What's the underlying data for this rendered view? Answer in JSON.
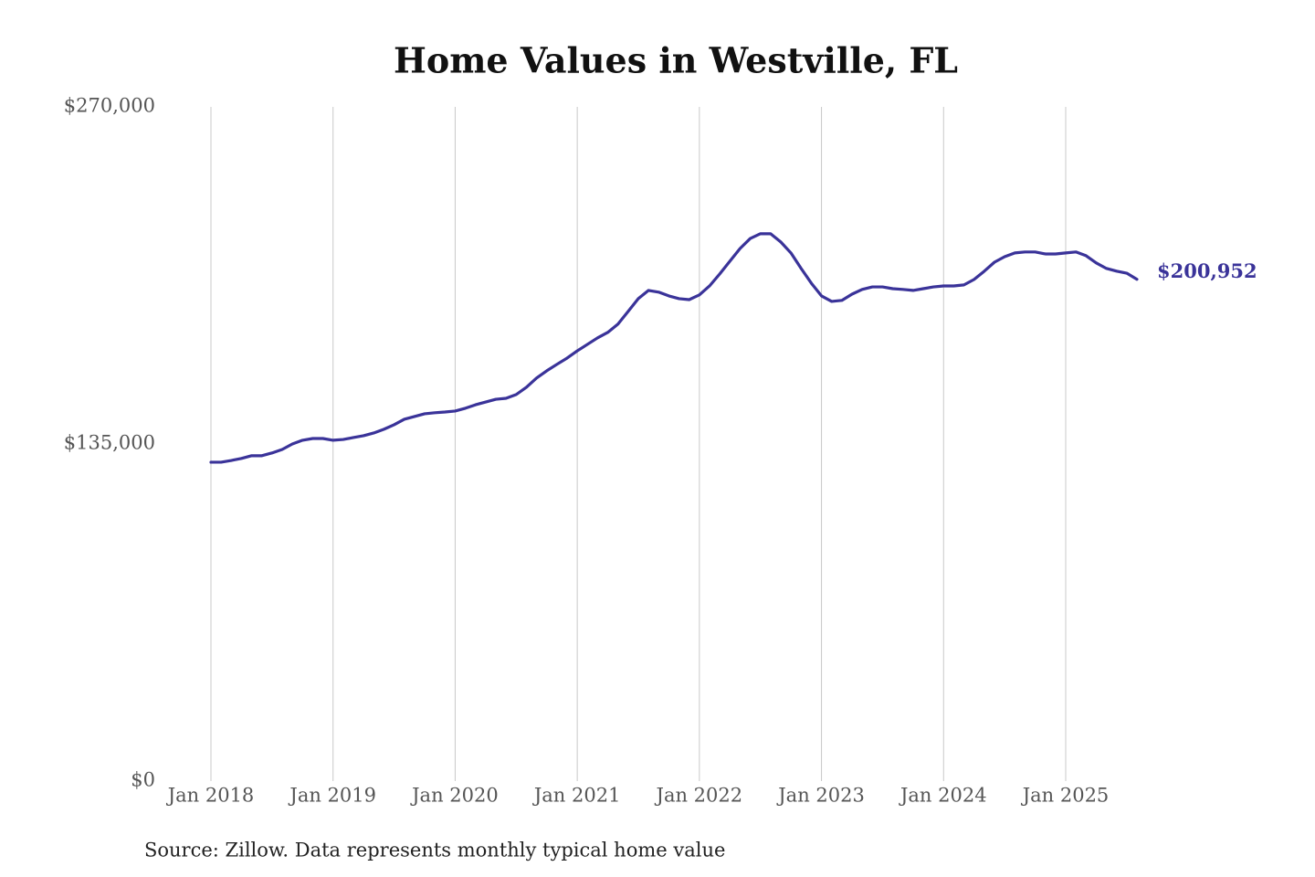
{
  "chart_data": {
    "type": "line",
    "title": "Home Values in Westville, FL",
    "note": "Source: Zillow. Data represents monthly typical home value",
    "x": [
      "2018-01",
      "2018-02",
      "2018-03",
      "2018-04",
      "2018-05",
      "2018-06",
      "2018-07",
      "2018-08",
      "2018-09",
      "2018-10",
      "2018-11",
      "2018-12",
      "2019-01",
      "2019-02",
      "2019-03",
      "2019-04",
      "2019-05",
      "2019-06",
      "2019-07",
      "2019-08",
      "2019-09",
      "2019-10",
      "2019-11",
      "2019-12",
      "2020-01",
      "2020-02",
      "2020-03",
      "2020-04",
      "2020-05",
      "2020-06",
      "2020-07",
      "2020-08",
      "2020-09",
      "2020-10",
      "2020-11",
      "2020-12",
      "2021-01",
      "2021-02",
      "2021-03",
      "2021-04",
      "2021-05",
      "2021-06",
      "2021-07",
      "2021-08",
      "2021-09",
      "2021-10",
      "2021-11",
      "2021-12",
      "2022-01",
      "2022-02",
      "2022-03",
      "2022-04",
      "2022-05",
      "2022-06",
      "2022-07",
      "2022-08",
      "2022-09",
      "2022-10",
      "2022-11",
      "2022-12",
      "2023-01",
      "2023-02",
      "2023-03",
      "2023-04",
      "2023-05",
      "2023-06",
      "2023-07",
      "2023-08",
      "2023-09",
      "2023-10",
      "2023-11",
      "2023-12",
      "2024-01",
      "2024-02",
      "2024-03",
      "2024-04",
      "2024-05",
      "2024-06",
      "2024-07",
      "2024-08",
      "2024-09",
      "2024-10",
      "2024-11",
      "2024-12",
      "2025-01",
      "2025-02",
      "2025-03",
      "2025-04",
      "2025-05",
      "2025-06",
      "2025-07",
      "2025-08"
    ],
    "series": [
      {
        "name": "Home value",
        "color": "#3a3399",
        "values": [
          127700,
          127700,
          128400,
          129200,
          130300,
          130300,
          131400,
          132800,
          135000,
          136500,
          137200,
          137200,
          136500,
          136800,
          137600,
          138300,
          139400,
          140900,
          142700,
          144900,
          146000,
          147100,
          147500,
          147800,
          148200,
          149300,
          150700,
          151800,
          152900,
          153300,
          154800,
          157700,
          161400,
          164300,
          166900,
          169400,
          172300,
          174900,
          177500,
          179700,
          183000,
          188100,
          193200,
          196500,
          195800,
          194300,
          193200,
          192800,
          194700,
          198300,
          203100,
          208200,
          213300,
          217300,
          219200,
          219200,
          215900,
          211500,
          205300,
          199400,
          194300,
          192100,
          192500,
          195000,
          196900,
          197900,
          197900,
          197200,
          196900,
          196500,
          197200,
          197900,
          198300,
          198300,
          198700,
          200900,
          204200,
          207800,
          210000,
          211500,
          211900,
          211900,
          211100,
          211100,
          211500,
          211900,
          210400,
          207500,
          205300,
          204200,
          203400,
          200952
        ],
        "value_labels": [
          null,
          null,
          null,
          null,
          null,
          null,
          null,
          null,
          null,
          null,
          null,
          null,
          null,
          null,
          null,
          null,
          null,
          null,
          null,
          null,
          null,
          null,
          null,
          null,
          null,
          null,
          null,
          null,
          null,
          null,
          null,
          null,
          null,
          null,
          null,
          null,
          null,
          null,
          null,
          null,
          null,
          null,
          null,
          null,
          null,
          null,
          null,
          null,
          null,
          null,
          null,
          null,
          null,
          null,
          null,
          null,
          null,
          null,
          null,
          null,
          null,
          null,
          null,
          null,
          null,
          null,
          null,
          null,
          null,
          null,
          null,
          null,
          null,
          null,
          null,
          null,
          null,
          null,
          null,
          null,
          null,
          null,
          null,
          null,
          null,
          null,
          null,
          null,
          null,
          null,
          null,
          "$200,952"
        ]
      }
    ],
    "xlim": [
      "2018-01",
      "2025-08"
    ],
    "xticks": [
      {
        "value": "2018-01",
        "label": "Jan 2018"
      },
      {
        "value": "2019-01",
        "label": "Jan 2019"
      },
      {
        "value": "2020-01",
        "label": "Jan 2020"
      },
      {
        "value": "2021-01",
        "label": "Jan 2021"
      },
      {
        "value": "2022-01",
        "label": "Jan 2022"
      },
      {
        "value": "2023-01",
        "label": "Jan 2023"
      },
      {
        "value": "2024-01",
        "label": "Jan 2024"
      },
      {
        "value": "2025-01",
        "label": "Jan 2025"
      }
    ],
    "ylim": [
      0,
      270000
    ],
    "yticks": [
      {
        "value": 0,
        "label": "$0"
      },
      {
        "value": 135000,
        "label": "$135,000"
      },
      {
        "value": 270000,
        "label": "$270,000"
      }
    ],
    "grid": "x"
  }
}
